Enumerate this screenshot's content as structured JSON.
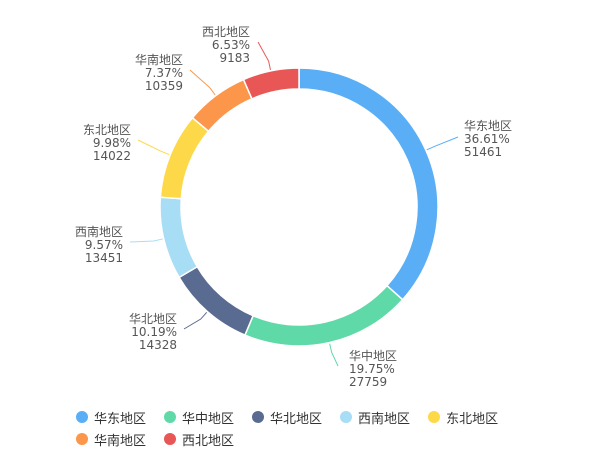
{
  "chart_data": {
    "type": "pie",
    "variant": "donut",
    "series": [
      {
        "name": "华东地区",
        "percent_label": "36.61%",
        "value_label": "51461",
        "value": 51461,
        "color": "#5aaef5"
      },
      {
        "name": "华中地区",
        "percent_label": "19.75%",
        "value_label": "27759",
        "value": 27759,
        "color": "#5fd9a8"
      },
      {
        "name": "华北地区",
        "percent_label": "10.19%",
        "value_label": "14328",
        "value": 14328,
        "color": "#596b91"
      },
      {
        "name": "西南地区",
        "percent_label": "9.57%",
        "value_label": "13451",
        "value": 13451,
        "color": "#a8ddf6"
      },
      {
        "name": "东北地区",
        "percent_label": "9.98%",
        "value_label": "14022",
        "value": 14022,
        "color": "#fdd94a"
      },
      {
        "name": "华南地区",
        "percent_label": "7.37%",
        "value_label": "10359",
        "value": 10359,
        "color": "#fb964a"
      },
      {
        "name": "西北地区",
        "percent_label": "6.53%",
        "value_label": "9183",
        "value": 9183,
        "color": "#e85756"
      }
    ],
    "legend_position": "bottom-left"
  }
}
